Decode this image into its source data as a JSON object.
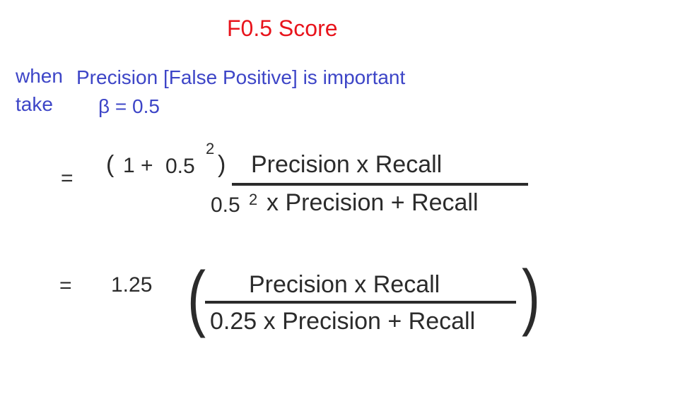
{
  "title": "F0.5 Score",
  "note": {
    "when": "when",
    "precision_important": "Precision [False Positive] is important",
    "take": "take",
    "beta_eq": "β = 0.5"
  },
  "eq1": {
    "equals": "=",
    "open_paren": "(",
    "one_plus": "1 +",
    "base": "0.5",
    "exp": "2",
    "close_paren": ")",
    "numerator": "Precision  x  Recall",
    "denom_base": "0.5",
    "denom_exp": "2",
    "denom_rest": "x  Precision  +  Recall"
  },
  "eq2": {
    "equals": "=",
    "factor": "1.25",
    "open_paren": "(",
    "close_paren": ")",
    "numerator": "Precision  x  Recall",
    "denominator": "0.25 x Precision  +  Recall"
  }
}
